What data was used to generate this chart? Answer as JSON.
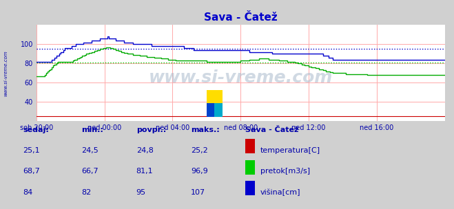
{
  "title": "Sava - Čatež",
  "title_color": "#0000cc",
  "bg_color": "#d0d0d0",
  "plot_bg_color": "#ffffff",
  "xlim": [
    0,
    288
  ],
  "ylim": [
    20,
    120
  ],
  "yticks": [
    40,
    60,
    80,
    100
  ],
  "xtick_labels": [
    "sob 20:00",
    "ned 00:00",
    "ned 04:00",
    "ned 08:00",
    "ned 12:00",
    "ned 16:00"
  ],
  "xtick_positions": [
    0,
    48,
    96,
    144,
    192,
    240
  ],
  "mean_blue": 95,
  "mean_green": 81.1,
  "watermark": "www.si-vreme.com",
  "left_label": "www.si-vreme.com",
  "table_headers": [
    "sedaj:",
    "min.:",
    "povpr.:",
    "maks.:"
  ],
  "table_col0": [
    "25,1",
    "68,7",
    "84"
  ],
  "table_col1": [
    "24,5",
    "66,7",
    "82"
  ],
  "table_col2": [
    "24,8",
    "81,1",
    "95"
  ],
  "table_col3": [
    "25,2",
    "96,9",
    "107"
  ],
  "legend_title": "Sava - Čatež",
  "legend_items": [
    "temperatura[C]",
    "pretok[m3/s]",
    "višina[cm]"
  ],
  "legend_colors": [
    "#cc0000",
    "#00cc00",
    "#0000cc"
  ],
  "text_color": "#0000aa"
}
